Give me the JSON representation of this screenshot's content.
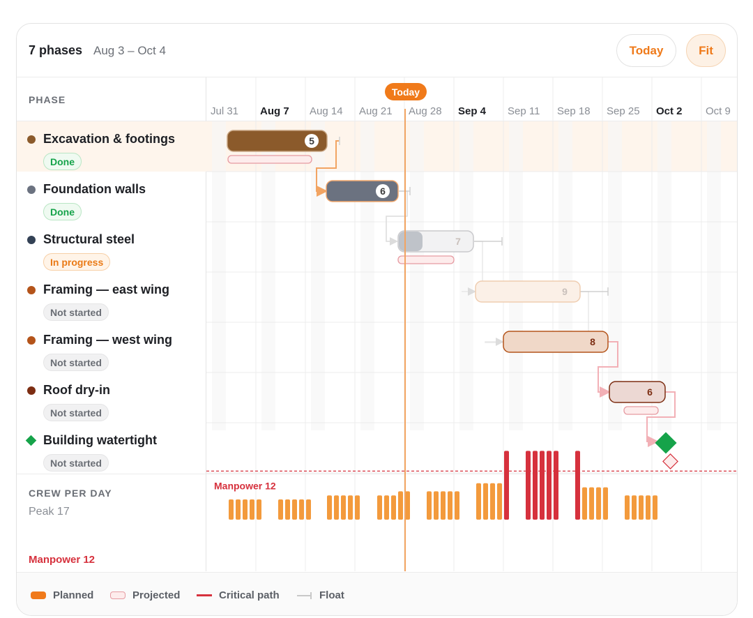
{
  "header": {
    "title": "7 phases",
    "subtitle": "Aug 3 – Oct 4",
    "today_btn": "Today",
    "fit_btn": "Fit"
  },
  "columns": {
    "phase_header": "PHASE"
  },
  "weeks": [
    {
      "label": "Jul 31",
      "bold": false
    },
    {
      "label": "Aug 7",
      "bold": true
    },
    {
      "label": "Aug 14",
      "bold": false
    },
    {
      "label": "Aug 21",
      "bold": false
    },
    {
      "label": "Aug 28",
      "bold": false
    },
    {
      "label": "Sep 4",
      "bold": true
    },
    {
      "label": "Sep 11",
      "bold": false
    },
    {
      "label": "Sep 18",
      "bold": false
    },
    {
      "label": "Sep 25",
      "bold": false
    },
    {
      "label": "Oct 2",
      "bold": true
    },
    {
      "label": "Oct 9",
      "bold": false
    }
  ],
  "today_marker": "Today",
  "phases": [
    {
      "name": "Excavation & footings",
      "status": "Done",
      "status_kind": "done",
      "color": "#8b5a2b",
      "duration": "5"
    },
    {
      "name": "Foundation walls",
      "status": "Done",
      "status_kind": "done",
      "color": "#6b7280",
      "duration": "6"
    },
    {
      "name": "Structural steel",
      "status": "In progress",
      "status_kind": "progress",
      "color": "#334155",
      "duration": "7"
    },
    {
      "name": "Framing — east wing",
      "status": "Not started",
      "status_kind": "not",
      "color": "#b4541a",
      "duration": "9"
    },
    {
      "name": "Framing — west wing",
      "status": "Not started",
      "status_kind": "not",
      "color": "#b4541a",
      "duration": "8"
    },
    {
      "name": "Roof dry-in",
      "status": "Not started",
      "status_kind": "not",
      "color": "#7c2d12",
      "duration": "6"
    },
    {
      "name": "Building watertight",
      "status": "Not started",
      "status_kind": "not",
      "color": "#16a34a",
      "milestone": true
    }
  ],
  "crew": {
    "heading": "CREW PER DAY",
    "peak": "Peak 17",
    "manpower_label": "Manpower 12",
    "chart_manpower_label": "Manpower 12",
    "manpower_limit": 12,
    "peak_value": 17,
    "planned_color": "#f39a3c",
    "over_color": "#d6313d"
  },
  "legend": {
    "planned": "Planned",
    "projected": "Projected",
    "critical": "Critical path",
    "float": "Float"
  },
  "colors": {
    "accent": "#f07a1a",
    "critical": "#d6313d",
    "done_green": "#16a34a"
  }
}
